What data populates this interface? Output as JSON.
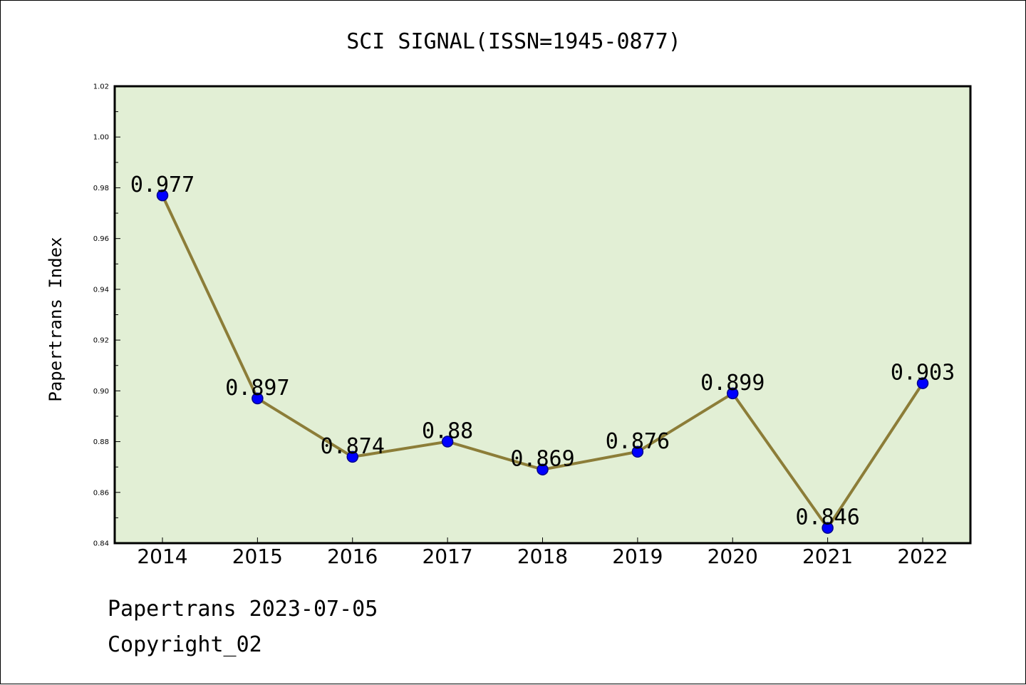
{
  "chart_data": {
    "type": "line",
    "title": "SCI SIGNAL(ISSN=1945-0877)",
    "xlabel": "",
    "ylabel": "Papertrans Index",
    "categories": [
      "2014",
      "2015",
      "2016",
      "2017",
      "2018",
      "2019",
      "2020",
      "2021",
      "2022"
    ],
    "series": [
      {
        "values": [
          0.977,
          0.897,
          0.874,
          0.88,
          0.869,
          0.876,
          0.899,
          0.846,
          0.903
        ],
        "labels": [
          "0.977",
          "0.897",
          "0.874",
          "0.88",
          "0.869",
          "0.876",
          "0.899",
          "0.846",
          "0.903"
        ]
      }
    ],
    "ylim": [
      0.84,
      1.02
    ],
    "yticks": [
      "0.84",
      "0.86",
      "0.88",
      "0.90",
      "0.92",
      "0.94",
      "0.96",
      "0.98",
      "1.00",
      "1.02"
    ],
    "grid": false,
    "legend": "none",
    "colors": {
      "plot_background": "#e2efd5",
      "line": "#8c7d38",
      "marker": "#0000ff",
      "marker_edge": "#00008b"
    }
  },
  "footer": {
    "line1": "Papertrans 2023-07-05",
    "line2": "Copyright_02"
  }
}
